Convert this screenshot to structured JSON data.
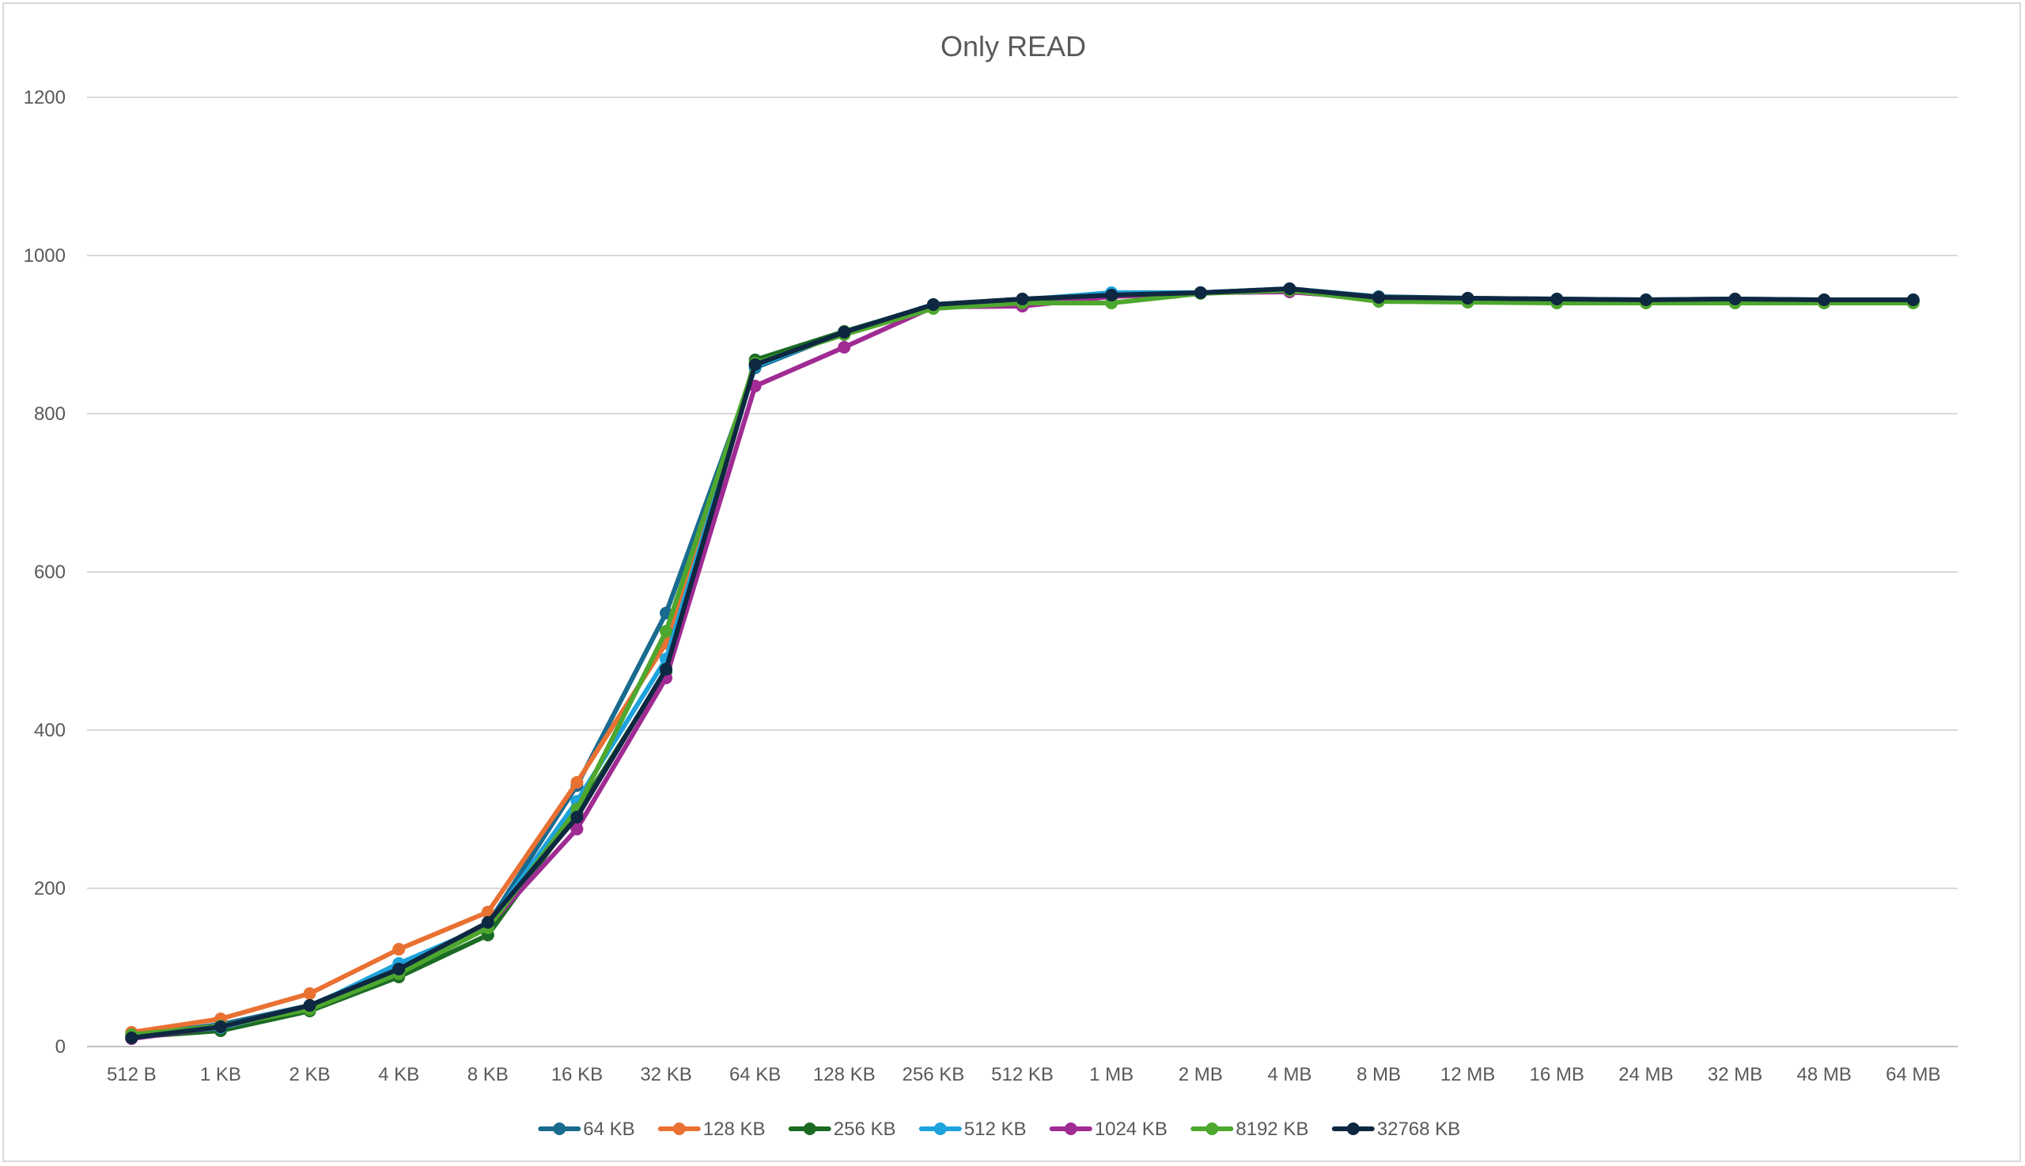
{
  "chart_data": {
    "type": "line",
    "title": "Only READ",
    "xlabel": "",
    "ylabel": "",
    "ylim": [
      0,
      1200
    ],
    "yticks": [
      0,
      200,
      400,
      600,
      800,
      1000,
      1200
    ],
    "grid": true,
    "legend_position": "bottom",
    "categories": [
      "512 B",
      "1 KB",
      "2 KB",
      "4 KB",
      "8 KB",
      "16 KB",
      "32 KB",
      "64 KB",
      "128 KB",
      "256 KB",
      "512 KB",
      "1 MB",
      "2 MB",
      "4 MB",
      "8 MB",
      "12 MB",
      "16 MB",
      "24 MB",
      "32 MB",
      "48 MB",
      "64 MB"
    ],
    "series": [
      {
        "name": "64 KB",
        "color": "#196b8f",
        "values": [
          14,
          28,
          52,
          100,
          155,
          330,
          548,
          858,
          903,
          938,
          945,
          950,
          953,
          958,
          948,
          946,
          945,
          944,
          945,
          944,
          944
        ]
      },
      {
        "name": "128 KB",
        "color": "#e97132",
        "values": [
          18,
          35,
          67,
          123,
          170,
          334,
          510,
          862,
          902,
          937,
          943,
          948,
          953,
          957,
          947,
          945,
          944,
          943,
          944,
          943,
          943
        ]
      },
      {
        "name": "256 KB",
        "color": "#1b6b24",
        "values": [
          12,
          20,
          45,
          88,
          141,
          296,
          474,
          868,
          904,
          937,
          943,
          949,
          953,
          957,
          946,
          944,
          943,
          942,
          943,
          942,
          942
        ]
      },
      {
        "name": "512 KB",
        "color": "#1ea3dc",
        "values": [
          13,
          24,
          50,
          105,
          153,
          310,
          490,
          860,
          903,
          938,
          944,
          953,
          953,
          958,
          947,
          945,
          944,
          943,
          944,
          943,
          943
        ]
      },
      {
        "name": "1024 KB",
        "color": "#a02b93",
        "values": [
          10,
          25,
          49,
          93,
          152,
          275,
          466,
          835,
          884,
          935,
          936,
          948,
          953,
          954,
          945,
          944,
          943,
          942,
          943,
          942,
          942
        ]
      },
      {
        "name": "8192 KB",
        "color": "#4ea72e",
        "values": [
          15,
          26,
          47,
          92,
          150,
          300,
          525,
          864,
          900,
          933,
          940,
          940,
          952,
          956,
          942,
          941,
          940,
          940,
          940,
          940,
          940
        ]
      },
      {
        "name": "32768 KB",
        "color": "#0e2841",
        "values": [
          11,
          25,
          52,
          98,
          157,
          290,
          477,
          862,
          903,
          938,
          945,
          950,
          953,
          958,
          947,
          946,
          945,
          944,
          945,
          944,
          944
        ]
      }
    ]
  }
}
